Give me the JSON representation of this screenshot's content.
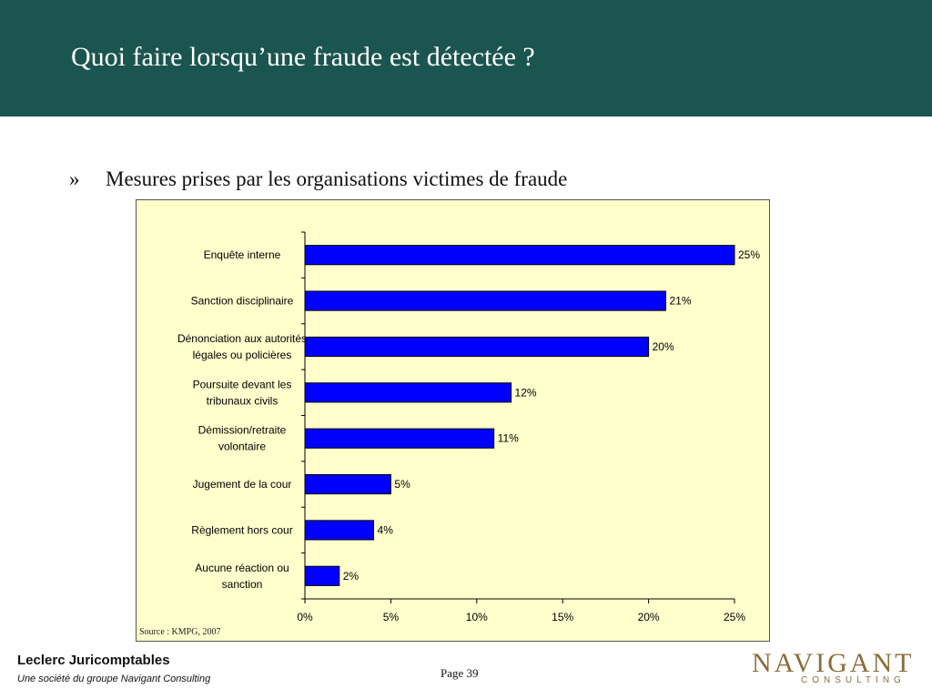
{
  "slide": {
    "title": "Quoi faire lorsqu’une fraude est détectée ?",
    "bullet_mark": "»",
    "bullet_text": "Mesures prises par les organisations victimes de fraude",
    "source": "Source : KMPG, 2007",
    "page": "Page 39"
  },
  "footer": {
    "company": "Leclerc Juricomptables",
    "company_sub": "Une société du groupe Navigant Consulting",
    "logo_main": "NAVIGANT",
    "logo_sub": "CONSULTING"
  },
  "colors": {
    "header_bg": "#1b5550",
    "bar_fill": "#0000ff",
    "plot_bg": "#ffffcc",
    "logo": "#8a6d3b"
  },
  "chart_data": {
    "type": "bar",
    "orientation": "horizontal",
    "categories": [
      [
        "Enquête interne"
      ],
      [
        "Sanction disciplinaire"
      ],
      [
        "Dénonciation aux autorités",
        "légales ou policières"
      ],
      [
        "Poursuite devant les",
        "tribunaux civils"
      ],
      [
        "Démission/retraite",
        "volontaire"
      ],
      [
        "Jugement de la cour"
      ],
      [
        "Règlement hors cour"
      ],
      [
        "Aucune réaction ou",
        "sanction"
      ]
    ],
    "values": [
      25,
      21,
      20,
      12,
      11,
      5,
      4,
      2
    ],
    "value_labels": [
      "25%",
      "21%",
      "20%",
      "12%",
      "11%",
      "5%",
      "4%",
      "2%"
    ],
    "xticks": [
      0,
      5,
      10,
      15,
      20,
      25
    ],
    "xtick_labels": [
      "0%",
      "5%",
      "10%",
      "15%",
      "20%",
      "25%"
    ],
    "xlim": [
      0,
      25
    ],
    "grid": false,
    "legend": "none"
  }
}
